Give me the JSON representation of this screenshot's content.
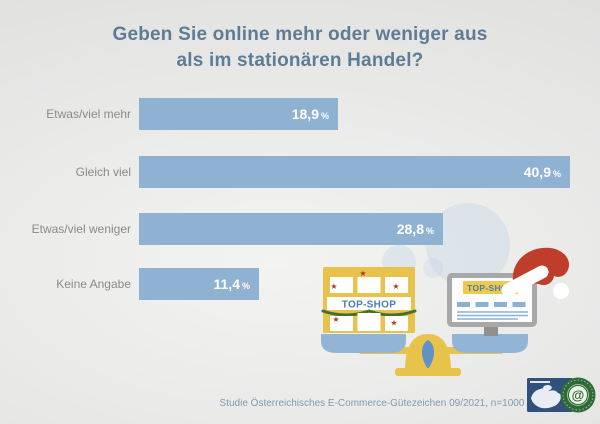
{
  "title": {
    "line1": "Geben Sie online mehr oder weniger aus",
    "line2": "als im stationären Handel?"
  },
  "chart_data": {
    "type": "bar",
    "orientation": "horizontal",
    "title": "Geben Sie online mehr oder weniger aus als im stationären Handel?",
    "categories": [
      "Etwas/viel mehr",
      "Gleich viel",
      "Etwas/viel weniger",
      "Keine Angabe"
    ],
    "values": [
      18.9,
      40.9,
      28.8,
      11.4
    ],
    "value_labels": [
      "18,9",
      "40,9",
      "28,8",
      "11,4"
    ],
    "unit": "%",
    "xlim": [
      0,
      43
    ],
    "grid": false,
    "legend": "none",
    "bar_color": "#8fb2d3",
    "label_color": "#8a8a8a",
    "value_color": "#ffffff"
  },
  "illustration": {
    "left_shop_sign": "TOP-SHOP",
    "right_shop_sign": "TOP-SHOP"
  },
  "logo": {
    "seal_symbol": "@"
  },
  "footer": {
    "source": "Studie Österreichisches E-Commerce-Gütezeichen 09/2021, n=1000"
  },
  "colors": {
    "background": "#e5e5e4",
    "title": "#5d7c96",
    "bar": "#8fb2d3",
    "scale_yellow": "#e8c34b",
    "pan_blue": "#92b5d6",
    "drop_blue": "#6092c6",
    "santa_red": "#bf3e2b",
    "garland_green": "#45702f",
    "seal_green": "#2d6a35",
    "logo_blue": "#30517c"
  }
}
